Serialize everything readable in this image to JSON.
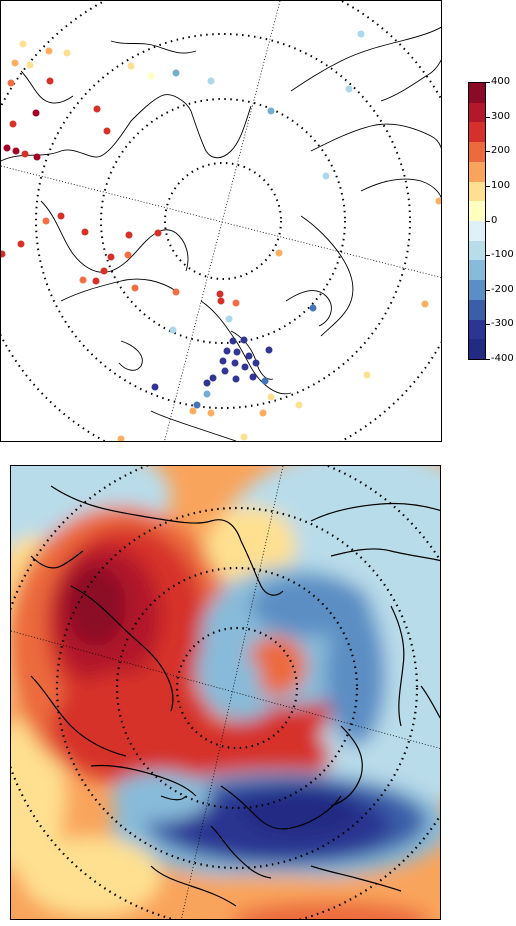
{
  "colorbar": {
    "ticks": [
      "400",
      "300",
      "200",
      "100",
      "0",
      "-100",
      "-200",
      "-300",
      "-400"
    ],
    "segments": [
      "#8b0a26",
      "#b2172b",
      "#d6302a",
      "#ec6a3e",
      "#f9a45c",
      "#fee090",
      "#ffffbf",
      "#dff1f7",
      "#b9dcea",
      "#88bbd9",
      "#5b8ec4",
      "#3a5fa8",
      "#2c3591",
      "#232a84"
    ]
  },
  "station_colors": {
    "dark_red": "#a50026",
    "red": "#d73027",
    "orange": "#f46d43",
    "light_orange": "#fdae61",
    "pale_yellow": "#fee090",
    "cream": "#ffffbf",
    "light_blue": "#abd9e9",
    "mid_blue": "#74add1",
    "blue": "#4575b4",
    "navy": "#313695"
  }
}
